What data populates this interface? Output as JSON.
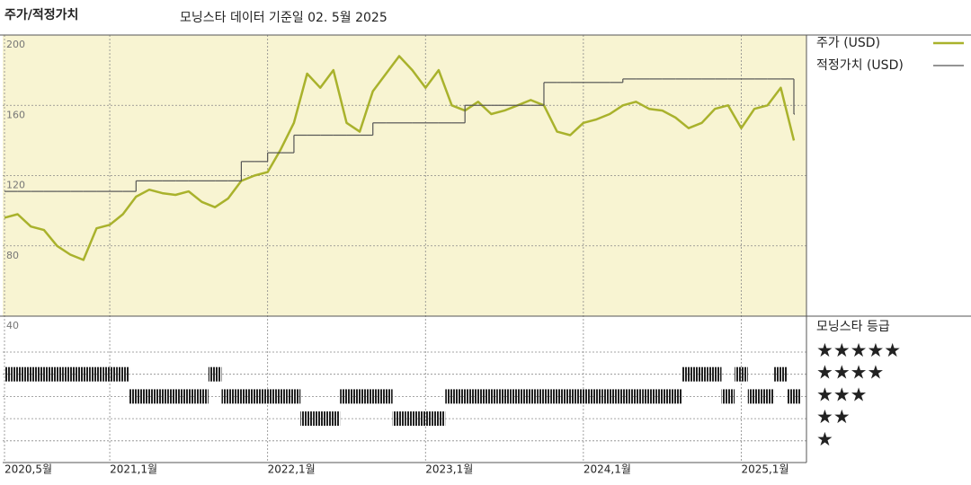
{
  "chart_data": {
    "type": "line",
    "title": "주가/적정가치",
    "subtitle": "모닝스타 데이터 기준일 02. 5월 2025",
    "x": [
      "2020-05",
      "2020-06",
      "2020-07",
      "2020-08",
      "2020-09",
      "2020-10",
      "2020-11",
      "2020-12",
      "2021-01",
      "2021-02",
      "2021-03",
      "2021-04",
      "2021-05",
      "2021-06",
      "2021-07",
      "2021-08",
      "2021-09",
      "2021-10",
      "2021-11",
      "2021-12",
      "2022-01",
      "2022-02",
      "2022-03",
      "2022-04",
      "2022-05",
      "2022-06",
      "2022-07",
      "2022-08",
      "2022-09",
      "2022-10",
      "2022-11",
      "2022-12",
      "2023-01",
      "2023-02",
      "2023-03",
      "2023-04",
      "2023-05",
      "2023-06",
      "2023-07",
      "2023-08",
      "2023-09",
      "2023-10",
      "2023-11",
      "2023-12",
      "2024-01",
      "2024-02",
      "2024-03",
      "2024-04",
      "2024-05",
      "2024-06",
      "2024-07",
      "2024-08",
      "2024-09",
      "2024-10",
      "2024-11",
      "2024-12",
      "2025-01",
      "2025-02",
      "2025-03",
      "2025-04",
      "2025-05"
    ],
    "xlim": [
      "2020-05",
      "2025-05"
    ],
    "xticks": [
      {
        "value": "2020-05",
        "label": "2020,5월"
      },
      {
        "value": "2021-01",
        "label": "2021,1월"
      },
      {
        "value": "2022-01",
        "label": "2022,1월"
      },
      {
        "value": "2023-01",
        "label": "2023,1월"
      },
      {
        "value": "2024-01",
        "label": "2024,1월"
      },
      {
        "value": "2025-01",
        "label": "2025,1월"
      }
    ],
    "ylim": [
      40,
      200
    ],
    "yticks": [
      40,
      80,
      120,
      160,
      200
    ],
    "background": "#f8f4d2",
    "series": [
      {
        "name": "주가 (USD)",
        "color": "#a9b22c",
        "values": [
          96,
          98,
          91,
          89,
          80,
          75,
          72,
          90,
          92,
          98,
          108,
          112,
          110,
          109,
          111,
          105,
          102,
          107,
          117,
          120,
          122,
          135,
          150,
          178,
          170,
          180,
          150,
          145,
          168,
          178,
          188,
          180,
          170,
          180,
          160,
          157,
          162,
          155,
          157,
          160,
          163,
          160,
          145,
          143,
          150,
          152,
          155,
          160,
          162,
          158,
          157,
          153,
          147,
          150,
          158,
          160,
          147,
          158,
          160,
          170,
          140
        ]
      },
      {
        "name": "적정가치 (USD)",
        "color": "#555555",
        "step": true,
        "values": [
          111,
          111,
          111,
          111,
          111,
          111,
          111,
          111,
          111,
          111,
          117,
          117,
          117,
          117,
          117,
          117,
          117,
          117,
          128,
          128,
          133,
          133,
          143,
          143,
          143,
          143,
          143,
          143,
          150,
          150,
          150,
          150,
          150,
          150,
          150,
          160,
          160,
          160,
          160,
          160,
          160,
          173,
          173,
          173,
          173,
          173,
          173,
          175,
          175,
          175,
          175,
          175,
          175,
          175,
          175,
          175,
          175,
          175,
          175,
          175,
          155
        ]
      }
    ],
    "ratings": {
      "title": "모닝스타 등급",
      "color": "#222222",
      "levels": [
        5,
        4,
        3,
        2,
        1
      ],
      "labels": [
        "★★★★★",
        "★★★★",
        "★★★",
        "★★",
        "★"
      ],
      "values": [
        4,
        4,
        4,
        4,
        4,
        4,
        4,
        4,
        4,
        4,
        3,
        3,
        3,
        3,
        3,
        3,
        4,
        3,
        3,
        3,
        3,
        3,
        3,
        2,
        2,
        2,
        3,
        3,
        3,
        3,
        2,
        2,
        2,
        2,
        3,
        3,
        3,
        3,
        3,
        3,
        3,
        3,
        3,
        3,
        3,
        3,
        3,
        3,
        3,
        3,
        3,
        3,
        4,
        4,
        4,
        3,
        4,
        3,
        3,
        4,
        3
      ]
    }
  }
}
